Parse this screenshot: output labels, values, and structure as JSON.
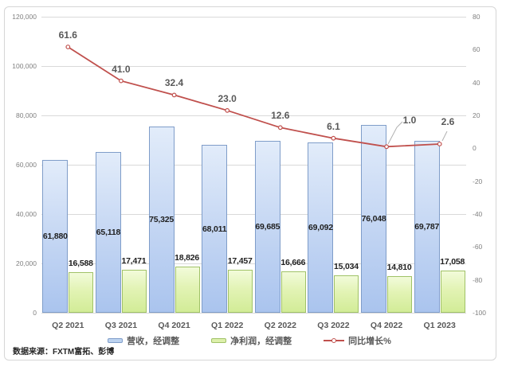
{
  "chart_data": {
    "type": "bar",
    "subtype": "grouped-bar-with-line-combo",
    "categories": [
      "Q2 2021",
      "Q3 2021",
      "Q4 2021",
      "Q1 2022",
      "Q2 2022",
      "Q3 2022",
      "Q4 2022",
      "Q1 2023"
    ],
    "series": [
      {
        "name": "营收，经调整",
        "type": "bar",
        "axis": "left",
        "values": [
          61880,
          65118,
          75325,
          68011,
          69685,
          69092,
          76048,
          69787
        ],
        "labels": [
          "61,880",
          "65,118",
          "75,325",
          "68,011",
          "69,685",
          "69,092",
          "76,048",
          "69,787"
        ],
        "color": "#bdd3f0"
      },
      {
        "name": "净利润，经调整",
        "type": "bar",
        "axis": "left",
        "values": [
          16588,
          17471,
          18826,
          17457,
          16666,
          15034,
          14810,
          17058
        ],
        "labels": [
          "16,588",
          "17,471",
          "18,826",
          "17,457",
          "16,666",
          "15,034",
          "14,810",
          "17,058"
        ],
        "color": "#ddf0ab"
      },
      {
        "name": "同比增长%",
        "type": "line",
        "axis": "right",
        "values": [
          61.6,
          41.0,
          32.4,
          23.0,
          12.6,
          6.1,
          1.0,
          2.6
        ],
        "labels": [
          "61.6",
          "41.0",
          "32.4",
          "23.0",
          "12.6",
          "6.1",
          "1.0",
          "2.6"
        ],
        "color": "#c0504d"
      }
    ],
    "left_axis": {
      "min": 0,
      "max": 120000,
      "step": 20000,
      "tick_labels_top_to_bottom": [
        "120,000",
        "100,000",
        "80,000",
        "60,000",
        "40,000",
        "20,000",
        "0"
      ]
    },
    "right_axis": {
      "min": -100,
      "max": 80,
      "step": 20,
      "tick_labels_top_to_bottom": [
        "80",
        "60",
        "40",
        "20",
        "0",
        "-20",
        "-40",
        "-60",
        "-80",
        "-100"
      ]
    },
    "grid": true,
    "legend_position": "bottom",
    "title": ""
  },
  "source_note": "数据来源：FXTM富拓、彭博",
  "colors": {
    "bar_blue_fill": "#c8d9f4",
    "bar_blue_border": "#7f9dc9",
    "bar_green_fill": "#e2f3b4",
    "bar_green_border": "#a0c267",
    "line_red": "#c0504d",
    "gridline": "#d9d9d9",
    "axis_text": "#808080",
    "category_text": "#595959",
    "bar_label_text": "#1f1f1f",
    "frame_border": "#d6d6d6"
  }
}
